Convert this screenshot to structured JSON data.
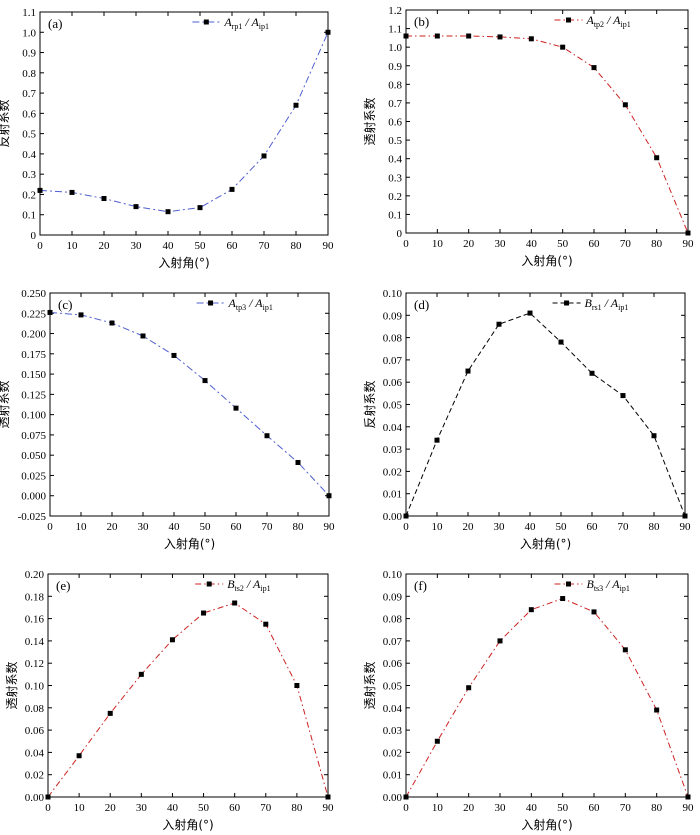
{
  "figure": {
    "colors": {
      "axis": "#000000",
      "marker": "#000000",
      "blue_dash": "#4f5fd0",
      "red_dash": "#cc2222",
      "black_dash": "#000000"
    }
  },
  "chart_data": [
    {
      "type": "line",
      "panel_label": "(a)",
      "legend": {
        "main1": "A",
        "sub1": "rp1",
        "sep": "/",
        "main2": "A",
        "sub2": "ip1"
      },
      "xlabel": "入射角(°)",
      "ylabel": "反射系数",
      "xlim": [
        0,
        90
      ],
      "ylim": [
        0,
        1.1
      ],
      "xticks": [
        "0",
        "10",
        "20",
        "30",
        "40",
        "50",
        "60",
        "70",
        "80",
        "90"
      ],
      "yticks": [
        "0",
        "0.1",
        "0.2",
        "0.3",
        "0.4",
        "0.5",
        "0.6",
        "0.7",
        "0.8",
        "0.9",
        "1.0",
        "1.1"
      ],
      "line_color": "blue_dash",
      "x": [
        0,
        10,
        20,
        30,
        40,
        50,
        60,
        70,
        80,
        90
      ],
      "y": [
        0.22,
        0.21,
        0.18,
        0.14,
        0.115,
        0.135,
        0.225,
        0.39,
        0.64,
        1.0
      ]
    },
    {
      "type": "line",
      "panel_label": "(b)",
      "legend": {
        "main1": "A",
        "sub1": "tp2",
        "sep": "/",
        "main2": "A",
        "sub2": "ip1"
      },
      "xlabel": "入射角(°)",
      "ylabel": "透射系数",
      "xlim": [
        0,
        90
      ],
      "ylim": [
        0,
        1.2
      ],
      "xticks": [
        "0",
        "10",
        "20",
        "30",
        "40",
        "50",
        "60",
        "70",
        "80",
        "90"
      ],
      "yticks": [
        "0",
        "0.1",
        "0.2",
        "0.3",
        "0.4",
        "0.5",
        "0.6",
        "0.7",
        "0.8",
        "0.9",
        "1.0",
        "1.1",
        "1.2"
      ],
      "line_color": "red_dash",
      "x": [
        0,
        10,
        20,
        30,
        40,
        50,
        60,
        70,
        80,
        90
      ],
      "y": [
        1.06,
        1.06,
        1.06,
        1.055,
        1.045,
        1.0,
        0.89,
        0.69,
        0.405,
        0.0
      ]
    },
    {
      "type": "line",
      "panel_label": "(c)",
      "legend": {
        "main1": "A",
        "sub1": "tp3",
        "sep": "/",
        "main2": "A",
        "sub2": "ip1"
      },
      "xlabel": "入射角(°)",
      "ylabel": "透射系数",
      "xlim": [
        0,
        90
      ],
      "ylim": [
        -0.025,
        0.25
      ],
      "xticks": [
        "0",
        "10",
        "20",
        "30",
        "40",
        "50",
        "60",
        "70",
        "80",
        "90"
      ],
      "yticks": [
        "-0.025",
        "0.000",
        "0.025",
        "0.050",
        "0.075",
        "0.100",
        "0.125",
        "0.150",
        "0.175",
        "0.200",
        "0.225",
        "0.250"
      ],
      "line_color": "blue_dash",
      "x": [
        0,
        10,
        20,
        30,
        40,
        50,
        60,
        70,
        80,
        90
      ],
      "y": [
        0.226,
        0.223,
        0.213,
        0.197,
        0.173,
        0.142,
        0.108,
        0.074,
        0.041,
        0.0
      ]
    },
    {
      "type": "line",
      "panel_label": "(d)",
      "legend": {
        "main1": "B",
        "sub1": "rs1",
        "sep": "/",
        "main2": "A",
        "sub2": "ip1"
      },
      "xlabel": "入射角(°)",
      "ylabel": "反射系数",
      "xlim": [
        0,
        90
      ],
      "ylim": [
        0,
        0.1
      ],
      "xticks": [
        "0",
        "10",
        "20",
        "30",
        "40",
        "50",
        "60",
        "70",
        "80",
        "90"
      ],
      "yticks": [
        "0.00",
        "0.01",
        "0.02",
        "0.03",
        "0.04",
        "0.05",
        "0.06",
        "0.07",
        "0.08",
        "0.09",
        "0.10"
      ],
      "line_color": "black_dash",
      "x": [
        0,
        10,
        20,
        30,
        40,
        50,
        60,
        70,
        80,
        90
      ],
      "y": [
        0.0,
        0.034,
        0.065,
        0.086,
        0.091,
        0.078,
        0.064,
        0.054,
        0.036,
        0.0
      ]
    },
    {
      "type": "line",
      "panel_label": "(e)",
      "legend": {
        "main1": "B",
        "sub1": "ts2",
        "sep": "/",
        "main2": "A",
        "sub2": "ip1"
      },
      "xlabel": "入射角(°)",
      "ylabel": "透射系数",
      "xlim": [
        0,
        90
      ],
      "ylim": [
        0,
        0.2
      ],
      "xticks": [
        "0",
        "10",
        "20",
        "30",
        "40",
        "50",
        "60",
        "70",
        "80",
        "90"
      ],
      "yticks": [
        "0.00",
        "0.02",
        "0.04",
        "0.06",
        "0.08",
        "0.10",
        "0.12",
        "0.14",
        "0.16",
        "0.18",
        "0.20"
      ],
      "line_color": "red_dash",
      "x": [
        0,
        10,
        20,
        30,
        40,
        50,
        60,
        70,
        80,
        90
      ],
      "y": [
        0.0,
        0.037,
        0.075,
        0.11,
        0.141,
        0.165,
        0.174,
        0.155,
        0.1,
        0.0
      ]
    },
    {
      "type": "line",
      "panel_label": "(f)",
      "legend": {
        "main1": "B",
        "sub1": "ts3",
        "sep": "/",
        "main2": "A",
        "sub2": "ip1"
      },
      "xlabel": "入射角(°)",
      "ylabel": "透射系数",
      "xlim": [
        0,
        90
      ],
      "ylim": [
        0,
        0.1
      ],
      "xticks": [
        "0",
        "10",
        "20",
        "30",
        "40",
        "50",
        "60",
        "70",
        "80",
        "90"
      ],
      "yticks": [
        "0.00",
        "0.01",
        "0.02",
        "0.03",
        "0.04",
        "0.05",
        "0.06",
        "0.07",
        "0.08",
        "0.09",
        "0.10"
      ],
      "line_color": "red_dash",
      "x": [
        0,
        10,
        20,
        30,
        40,
        50,
        60,
        70,
        80,
        90
      ],
      "y": [
        0.0,
        0.025,
        0.049,
        0.07,
        0.084,
        0.089,
        0.083,
        0.066,
        0.039,
        0.0
      ]
    }
  ]
}
